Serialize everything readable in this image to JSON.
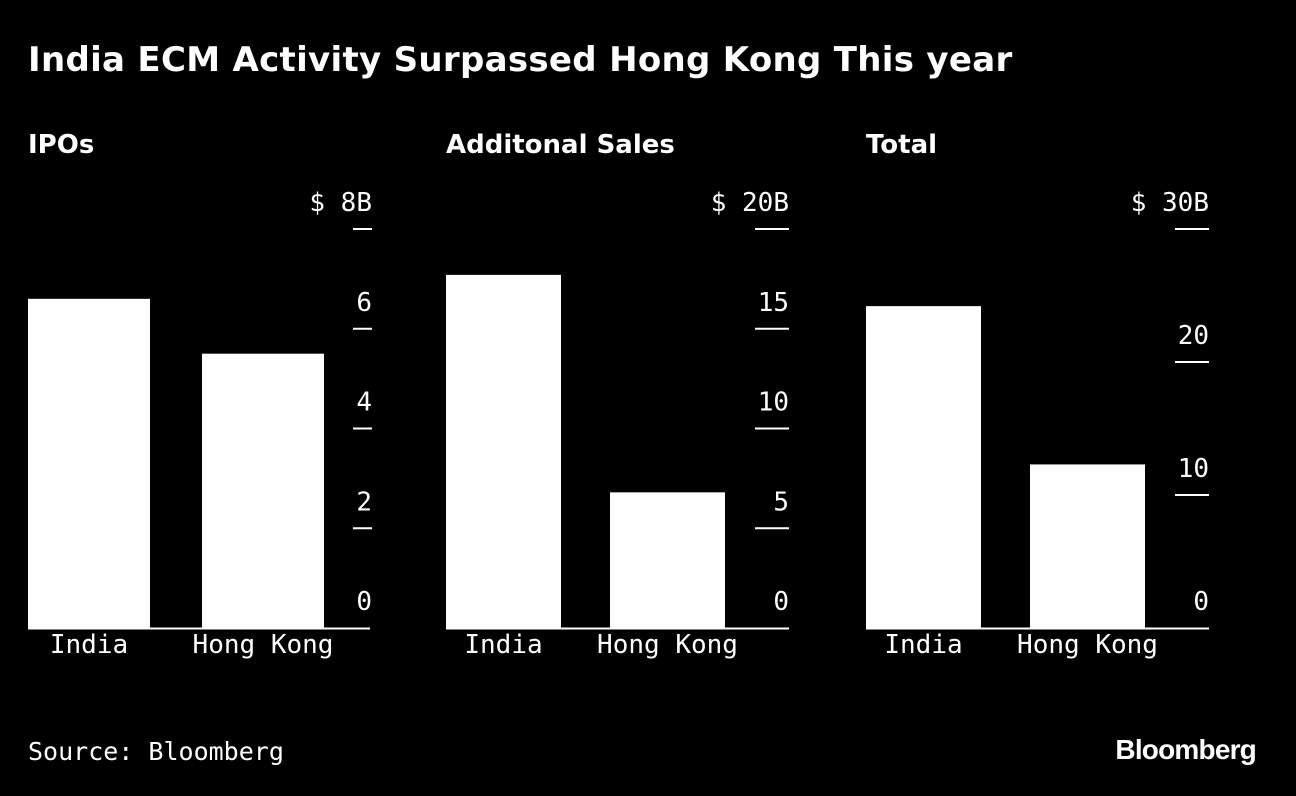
{
  "title": "India ECM Activity Surpassed Hong Kong This year",
  "source": "Source: Bloomberg",
  "brand": "Bloomberg",
  "colors": {
    "background": "#000000",
    "bar": "#ffffff",
    "text": "#ffffff"
  },
  "chart_data": [
    {
      "type": "bar",
      "title": "IPOs",
      "categories": [
        "India",
        "Hong Kong"
      ],
      "values": [
        6.6,
        5.5
      ],
      "ylim": [
        0,
        8
      ],
      "ticks": [
        0,
        2,
        4,
        6,
        8
      ],
      "tick_labels": [
        "0",
        "2",
        "4",
        "6",
        "$ 8B"
      ],
      "xlabel": "",
      "ylabel": "",
      "grid": false
    },
    {
      "type": "bar",
      "title": "Additonal Sales",
      "categories": [
        "India",
        "Hong Kong"
      ],
      "values": [
        17.7,
        6.8
      ],
      "ylim": [
        0,
        20
      ],
      "ticks": [
        0,
        5,
        10,
        15,
        20
      ],
      "tick_labels": [
        "0",
        "5",
        "10",
        "15",
        "$ 20B"
      ],
      "xlabel": "",
      "ylabel": "",
      "grid": false
    },
    {
      "type": "bar",
      "title": "Total",
      "categories": [
        "India",
        "Hong Kong"
      ],
      "values": [
        24.2,
        12.3
      ],
      "ylim": [
        0,
        30
      ],
      "ticks": [
        0,
        10,
        20,
        30
      ],
      "tick_labels": [
        "0",
        "10",
        "20",
        "$ 30B"
      ],
      "xlabel": "",
      "ylabel": "",
      "grid": false
    }
  ]
}
